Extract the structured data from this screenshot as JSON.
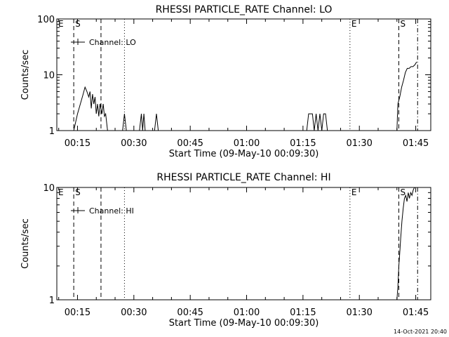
{
  "footer": {
    "timestamp": "14-Oct-2021 20:40"
  },
  "chart_data": [
    {
      "type": "line",
      "title": "RHESSI PARTICLE_RATE Channel: LO",
      "xlabel": "Start Time (09-May-10 00:09:30)",
      "ylabel": "Counts/sec",
      "y_scale": "log",
      "xlim": [
        "00:09:30",
        "01:49:00"
      ],
      "ylim": [
        1,
        100
      ],
      "x_ticks": [
        "00:15",
        "00:30",
        "00:45",
        "01:00",
        "01:15",
        "01:30",
        "01:45"
      ],
      "y_ticks": [
        {
          "value": 1,
          "label": "1"
        },
        {
          "value": 10,
          "label": "10"
        },
        {
          "value": 100,
          "label": "100"
        }
      ],
      "legend": {
        "placement": "top-left",
        "entry": "Channel: LO"
      },
      "markers": [
        {
          "label": "E",
          "time": "00:09:30",
          "style": "none"
        },
        {
          "label": "S",
          "time": "00:14:00",
          "style": "dashed"
        },
        {
          "label": "",
          "time": "00:21:15",
          "style": "dashed"
        },
        {
          "label": "",
          "time": "00:27:30",
          "style": "dotted"
        },
        {
          "label": "E",
          "time": "01:27:30",
          "style": "dotted"
        },
        {
          "label": "S",
          "time": "01:40:30",
          "style": "dashed"
        },
        {
          "label": "",
          "time": "01:45:30",
          "style": "dashdot"
        }
      ],
      "series": [
        {
          "values": [
            [
              "00:14:00",
              1
            ],
            [
              "00:15:00",
              2
            ],
            [
              "00:15:45",
              3
            ],
            [
              "00:16:30",
              4.5
            ],
            [
              "00:17:00",
              6
            ],
            [
              "00:17:30",
              5
            ],
            [
              "00:18:00",
              4
            ],
            [
              "00:18:20",
              5
            ],
            [
              "00:18:40",
              2.5
            ],
            [
              "00:19:00",
              4.5
            ],
            [
              "00:19:20",
              3
            ],
            [
              "00:19:40",
              4
            ],
            [
              "00:20:00",
              2
            ],
            [
              "00:20:20",
              3
            ],
            [
              "00:20:40",
              1.8
            ],
            [
              "00:21:00",
              3
            ],
            [
              "00:21:30",
              2
            ],
            [
              "00:21:50",
              3
            ],
            [
              "00:22:10",
              1.8
            ],
            [
              "00:22:30",
              2
            ],
            [
              "00:23:00",
              1
            ],
            [
              "00:27:00",
              1
            ],
            [
              "00:27:30",
              2
            ],
            [
              "00:28:00",
              1
            ],
            [
              "00:31:30",
              1
            ],
            [
              "00:32:00",
              2
            ],
            [
              "00:32:20",
              1
            ],
            [
              "00:32:40",
              2
            ],
            [
              "00:33:00",
              1
            ],
            [
              "00:35:30",
              1
            ],
            [
              "00:36:00",
              2
            ],
            [
              "00:36:30",
              1
            ],
            [
              "01:16:00",
              1
            ],
            [
              "01:16:30",
              2
            ],
            [
              "01:17:30",
              2
            ],
            [
              "01:18:00",
              1
            ],
            [
              "01:18:30",
              2
            ],
            [
              "01:19:00",
              1
            ],
            [
              "01:19:30",
              2
            ],
            [
              "01:20:00",
              1
            ],
            [
              "01:20:30",
              2
            ],
            [
              "01:21:00",
              2
            ],
            [
              "01:21:30",
              1
            ],
            [
              "01:40:00",
              1
            ],
            [
              "01:40:15",
              3
            ],
            [
              "01:40:45",
              4
            ],
            [
              "01:41:15",
              6
            ],
            [
              "01:41:45",
              8
            ],
            [
              "01:42:15",
              11
            ],
            [
              "01:42:45",
              13
            ],
            [
              "01:43:15",
              13
            ],
            [
              "01:43:45",
              14
            ],
            [
              "01:44:15",
              14
            ],
            [
              "01:44:45",
              15
            ],
            [
              "01:45:15",
              17
            ]
          ]
        }
      ]
    },
    {
      "type": "line",
      "title": "RHESSI PARTICLE_RATE Channel: HI",
      "xlabel": "Start Time (09-May-10 00:09:30)",
      "ylabel": "Counts/sec",
      "y_scale": "log",
      "xlim": [
        "00:09:30",
        "01:49:00"
      ],
      "ylim": [
        1,
        10
      ],
      "x_ticks": [
        "00:15",
        "00:30",
        "00:45",
        "01:00",
        "01:15",
        "01:30",
        "01:45"
      ],
      "y_ticks": [
        {
          "value": 1,
          "label": "1"
        },
        {
          "value": 10,
          "label": "10"
        }
      ],
      "legend": {
        "placement": "top-left",
        "entry": "Channel: HI"
      },
      "markers": [
        {
          "label": "E",
          "time": "00:09:30",
          "style": "none"
        },
        {
          "label": "S",
          "time": "00:14:00",
          "style": "dashed"
        },
        {
          "label": "",
          "time": "00:21:15",
          "style": "dashed"
        },
        {
          "label": "",
          "time": "00:27:30",
          "style": "dotted"
        },
        {
          "label": "E",
          "time": "01:27:30",
          "style": "dotted"
        },
        {
          "label": "S",
          "time": "01:40:30",
          "style": "dashed"
        },
        {
          "label": "",
          "time": "01:45:30",
          "style": "dashdot"
        }
      ],
      "series": [
        {
          "values": [
            [
              "01:40:00",
              1
            ],
            [
              "01:40:15",
              1.3
            ],
            [
              "01:40:30",
              2
            ],
            [
              "01:40:45",
              2.6
            ],
            [
              "01:41:00",
              3.5
            ],
            [
              "01:41:20",
              5
            ],
            [
              "01:41:40",
              6.5
            ],
            [
              "01:42:00",
              8
            ],
            [
              "01:42:20",
              8.5
            ],
            [
              "01:42:40",
              7.5
            ],
            [
              "01:43:00",
              9
            ],
            [
              "01:43:20",
              8
            ],
            [
              "01:43:40",
              9
            ],
            [
              "01:44:00",
              8.5
            ],
            [
              "01:44:20",
              9.5
            ],
            [
              "01:44:40",
              10
            ],
            [
              "01:45:00",
              10
            ]
          ]
        }
      ]
    }
  ]
}
